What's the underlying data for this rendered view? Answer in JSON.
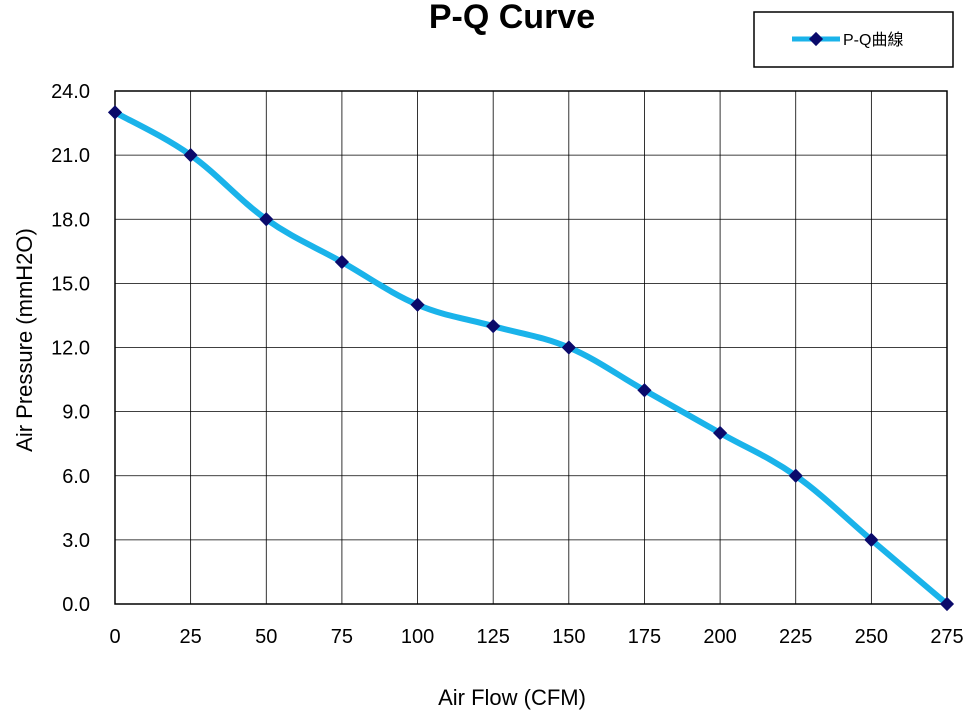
{
  "chart_data": {
    "type": "line",
    "title": "P-Q Curve",
    "xlabel": "Air Flow (CFM)",
    "ylabel": "Air Pressure (mmH2O)",
    "xlim": [
      0,
      275
    ],
    "ylim": [
      0,
      24
    ],
    "x_ticks": [
      0,
      25,
      50,
      75,
      100,
      125,
      150,
      175,
      200,
      225,
      250,
      275
    ],
    "x_tick_labels": [
      "0",
      "25",
      "50",
      "75",
      "100",
      "125",
      "150",
      "175",
      "200",
      "225",
      "250",
      "275"
    ],
    "y_ticks": [
      0,
      3,
      6,
      9,
      12,
      15,
      18,
      21,
      24
    ],
    "y_tick_labels": [
      "0.0",
      "3.0",
      "6.0",
      "9.0",
      "12.0",
      "15.0",
      "18.0",
      "21.0",
      "24.0"
    ],
    "grid": true,
    "legend_position": "top-right",
    "series": [
      {
        "name": "P-Q曲線",
        "x": [
          0,
          25,
          50,
          75,
          100,
          125,
          150,
          175,
          200,
          225,
          250,
          275
        ],
        "y": [
          23,
          21,
          18,
          16,
          14,
          13,
          12,
          10,
          8,
          6,
          3,
          0
        ],
        "line_color": "#1ab3ea",
        "marker_color": "#0a0a6b"
      }
    ]
  }
}
